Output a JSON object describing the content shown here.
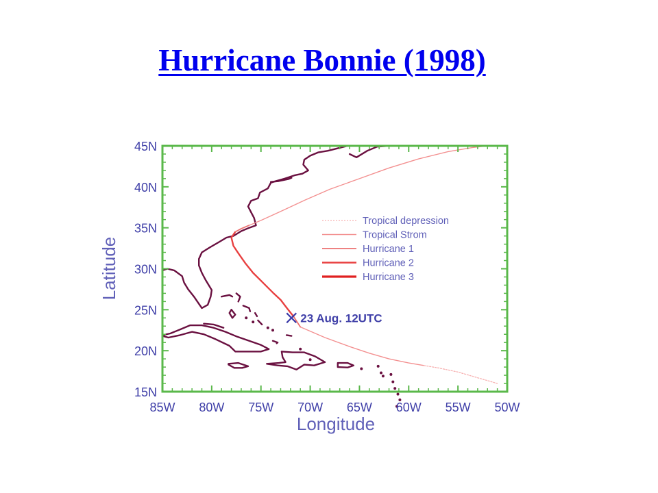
{
  "slide": {
    "title": "Hurricane Bonnie (1998)"
  },
  "chart_data": {
    "type": "line",
    "xlabel": "Longitude",
    "ylabel": "Latitude",
    "xlim": [
      -85,
      -50
    ],
    "ylim": [
      15,
      45
    ],
    "x_ticks": [
      "85W",
      "80W",
      "75W",
      "70W",
      "65W",
      "60W",
      "55W",
      "50W"
    ],
    "y_ticks": [
      "15N",
      "20N",
      "25N",
      "30N",
      "35N",
      "40N",
      "45N"
    ],
    "grid": false,
    "legend_placement": "right-center",
    "colors": {
      "frame": "#5ab84a",
      "axis_text": "#4040a8",
      "axis_title": "#6060b8",
      "coastline": "#6a1040",
      "tropical_depression": "#f7b0b0",
      "tropical_storm": "#f39090",
      "hurricane_1": "#ec7070",
      "hurricane_2": "#e84040",
      "hurricane_3": "#e02020",
      "marker": "#3a3aa8"
    },
    "legend": [
      {
        "name": "Tropical depression",
        "style": "tropical_depression"
      },
      {
        "name": "Tropical Strom",
        "style": "tropical_storm"
      },
      {
        "name": "Hurricane 1",
        "style": "hurricane_1"
      },
      {
        "name": "Hurricane 2",
        "style": "hurricane_2"
      },
      {
        "name": "Hurricane 3",
        "style": "hurricane_3"
      }
    ],
    "series": [
      {
        "name": "Tropical depression",
        "style": "tropical_depression",
        "x": [
          -51.0,
          -53.0,
          -55.0,
          -57.0,
          -58.5
        ],
        "y": [
          16.0,
          16.7,
          17.4,
          17.9,
          18.2
        ]
      },
      {
        "name": "Tropical Strom",
        "style": "tropical_storm",
        "x": [
          -58.5,
          -60.0,
          -62.0,
          -64.0,
          -66.0,
          -68.5,
          -71.0
        ],
        "y": [
          18.2,
          18.5,
          19.0,
          19.7,
          20.5,
          21.6,
          22.9
        ]
      },
      {
        "name": "Hurricane 1",
        "style": "hurricane_1",
        "x": [
          -71.0,
          -71.7
        ],
        "y": [
          22.9,
          24.2
        ]
      },
      {
        "name": "Hurricane 2",
        "style": "hurricane_2",
        "x": [
          -71.7,
          -72.3,
          -73.0,
          -73.8,
          -74.8,
          -75.8,
          -76.6,
          -77.3,
          -77.8,
          -78.0,
          -77.6
        ],
        "y": [
          24.2,
          25.1,
          26.2,
          27.1,
          28.3,
          29.5,
          30.7,
          31.9,
          32.8,
          33.8,
          34.5
        ]
      },
      {
        "name": "Hurricane 1",
        "style": "hurricane_1",
        "x": [
          -77.6,
          -77.0,
          -76.2
        ],
        "y": [
          34.5,
          34.9,
          35.3
        ]
      },
      {
        "name": "Tropical Strom",
        "style": "tropical_storm",
        "x": [
          -76.2,
          -75.0,
          -73.0,
          -70.5,
          -68.0,
          -65.0,
          -62.0,
          -59.0,
          -56.0,
          -53.5,
          -52.0
        ],
        "y": [
          35.3,
          35.9,
          37.0,
          38.4,
          39.7,
          41.0,
          42.3,
          43.4,
          44.3,
          44.8,
          45.0
        ]
      },
      {
        "name": "Tropical depression",
        "style": "tropical_depression",
        "x": [
          -52.0,
          -50.5
        ],
        "y": [
          45.0,
          45.0
        ]
      }
    ],
    "annotations": [
      {
        "text": "23 Aug. 12UTC",
        "marker": "x",
        "x": -71.9,
        "y": 24.0
      }
    ]
  }
}
